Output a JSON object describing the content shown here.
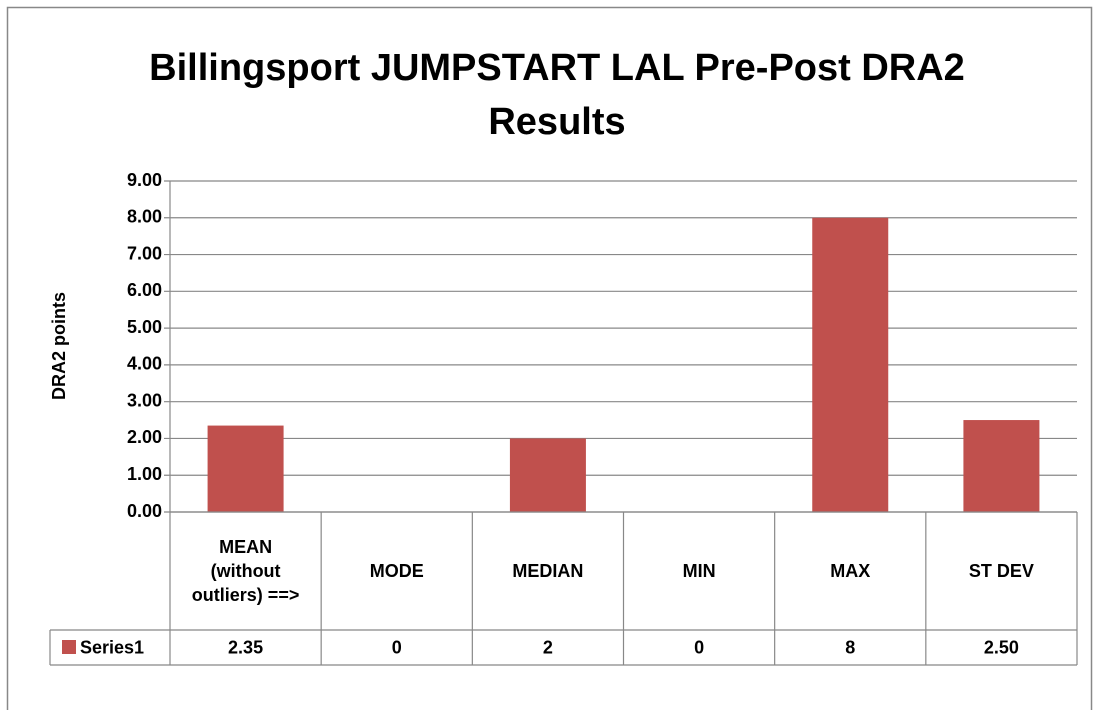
{
  "chart_data": {
    "type": "bar",
    "title": "Billingsport JUMPSTART LAL Pre-Post DRA2 Results",
    "y_label": "DRA2 points",
    "categories": [
      "MEAN (without outliers) ==>",
      "MODE",
      "MEDIAN",
      "MIN",
      "MAX",
      "ST DEV"
    ],
    "series": [
      {
        "name": "Series1",
        "color": "#c0504d",
        "values": [
          2.35,
          0,
          2,
          0,
          8,
          2.5
        ],
        "value_labels": [
          "2.35",
          "0",
          "2",
          "0",
          "8",
          "2.50"
        ]
      }
    ],
    "ylim": [
      0,
      9
    ],
    "yticks": [
      {
        "value": 0,
        "label": "0.00"
      },
      {
        "value": 1,
        "label": "1.00"
      },
      {
        "value": 2,
        "label": "2.00"
      },
      {
        "value": 3,
        "label": "3.00"
      },
      {
        "value": 4,
        "label": "4.00"
      },
      {
        "value": 5,
        "label": "5.00"
      },
      {
        "value": 6,
        "label": "6.00"
      },
      {
        "value": 7,
        "label": "7.00"
      },
      {
        "value": 8,
        "label": "8.00"
      },
      {
        "value": 9,
        "label": "9.00"
      }
    ],
    "grid": true,
    "data_table": true
  }
}
